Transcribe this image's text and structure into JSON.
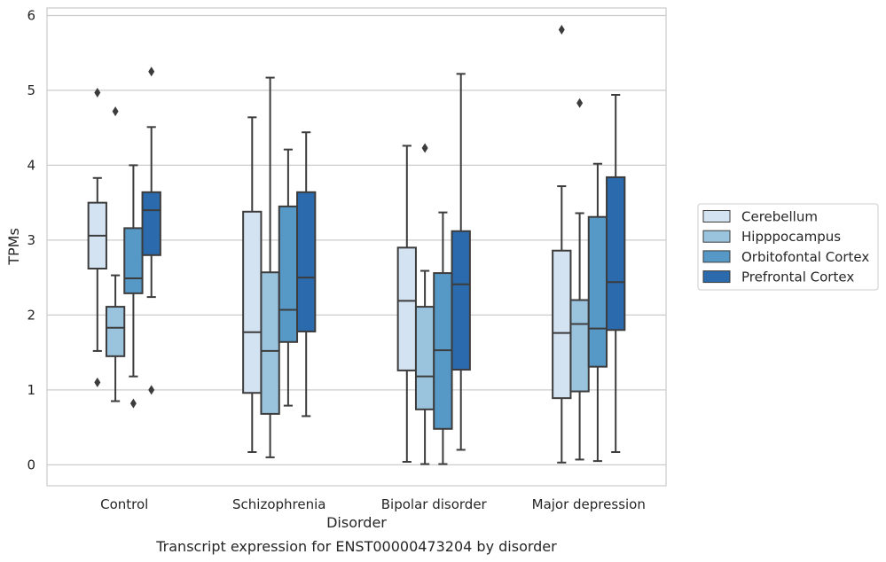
{
  "chart_data": {
    "type": "box",
    "caption": "Transcript expression for ENST00000473204 by disorder",
    "xlabel": "Disorder",
    "ylabel": "TPMs",
    "ylim": [
      -0.28,
      6.1
    ],
    "yticks": [
      0,
      1,
      2,
      3,
      4,
      5,
      6
    ],
    "grid": "horizontal",
    "legend_position": "right",
    "categories": [
      "Control",
      "Schizophrenia",
      "Bipolar disorder",
      "Major depression"
    ],
    "series": [
      {
        "name": "Cerebellum",
        "color": "#d4e3f2",
        "boxes": [
          {
            "whisker_low": 1.52,
            "q1": 2.62,
            "median": 3.06,
            "q3": 3.5,
            "whisker_high": 3.83,
            "outliers": [
              4.97,
              1.1
            ]
          },
          {
            "whisker_low": 0.17,
            "q1": 0.96,
            "median": 1.77,
            "q3": 3.38,
            "whisker_high": 4.64,
            "outliers": []
          },
          {
            "whisker_low": 0.04,
            "q1": 1.26,
            "median": 2.19,
            "q3": 2.9,
            "whisker_high": 4.26,
            "outliers": []
          },
          {
            "whisker_low": 0.03,
            "q1": 0.89,
            "median": 1.76,
            "q3": 2.86,
            "whisker_high": 3.72,
            "outliers": [
              5.81
            ]
          }
        ]
      },
      {
        "name": "Hipppocampus",
        "color": "#9ac3de",
        "boxes": [
          {
            "whisker_low": 0.85,
            "q1": 1.45,
            "median": 1.83,
            "q3": 2.11,
            "whisker_high": 2.53,
            "outliers": [
              4.72
            ]
          },
          {
            "whisker_low": 0.1,
            "q1": 0.68,
            "median": 1.52,
            "q3": 2.57,
            "whisker_high": 5.17,
            "outliers": []
          },
          {
            "whisker_low": 0.01,
            "q1": 0.74,
            "median": 1.18,
            "q3": 2.11,
            "whisker_high": 2.59,
            "outliers": [
              4.23
            ]
          },
          {
            "whisker_low": 0.07,
            "q1": 0.98,
            "median": 1.88,
            "q3": 2.2,
            "whisker_high": 3.36,
            "outliers": [
              4.83
            ]
          }
        ]
      },
      {
        "name": "Orbitofontal Cortex",
        "color": "#5699c6",
        "boxes": [
          {
            "whisker_low": 1.18,
            "q1": 2.29,
            "median": 2.49,
            "q3": 3.16,
            "whisker_high": 4.0,
            "outliers": [
              0.82
            ]
          },
          {
            "whisker_low": 0.79,
            "q1": 1.64,
            "median": 2.07,
            "q3": 3.45,
            "whisker_high": 4.21,
            "outliers": []
          },
          {
            "whisker_low": 0.01,
            "q1": 0.48,
            "median": 1.53,
            "q3": 2.56,
            "whisker_high": 3.37,
            "outliers": []
          },
          {
            "whisker_low": 0.05,
            "q1": 1.31,
            "median": 1.82,
            "q3": 3.31,
            "whisker_high": 4.02,
            "outliers": []
          }
        ]
      },
      {
        "name": "Prefrontal Cortex",
        "color": "#2a6aad",
        "boxes": [
          {
            "whisker_low": 2.24,
            "q1": 2.8,
            "median": 3.4,
            "q3": 3.64,
            "whisker_high": 4.51,
            "outliers": [
              5.25,
              1.0
            ]
          },
          {
            "whisker_low": 0.65,
            "q1": 1.78,
            "median": 2.5,
            "q3": 3.64,
            "whisker_high": 4.44,
            "outliers": []
          },
          {
            "whisker_low": 0.2,
            "q1": 1.27,
            "median": 2.41,
            "q3": 3.12,
            "whisker_high": 5.22,
            "outliers": []
          },
          {
            "whisker_low": 0.17,
            "q1": 1.8,
            "median": 2.44,
            "q3": 3.84,
            "whisker_high": 4.94,
            "outliers": []
          }
        ]
      }
    ]
  }
}
